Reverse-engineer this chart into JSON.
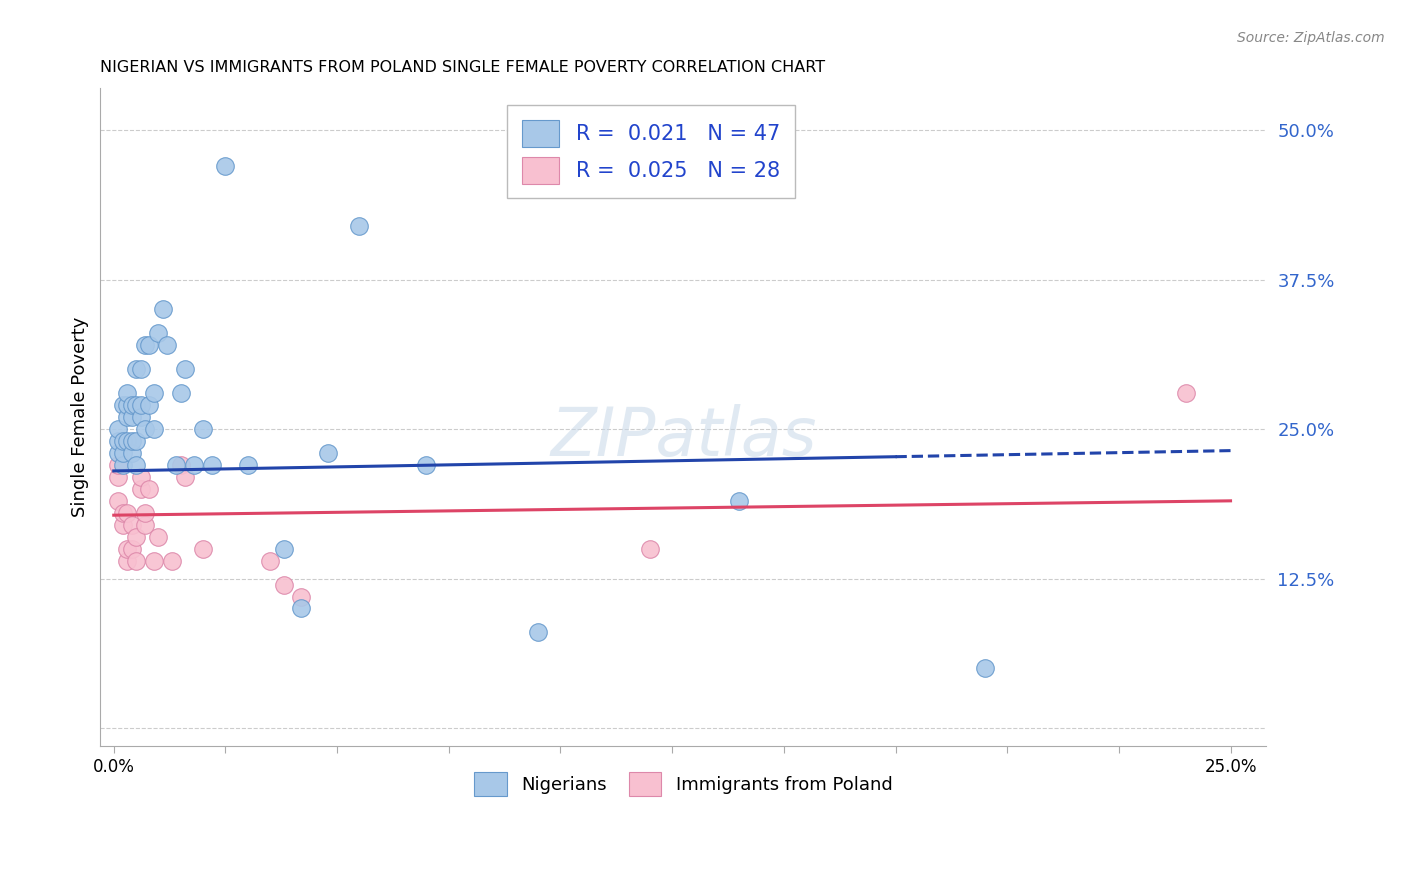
{
  "title": "NIGERIAN VS IMMIGRANTS FROM POLAND SINGLE FEMALE POVERTY CORRELATION CHART",
  "source": "Source: ZipAtlas.com",
  "ylabel": "Single Female Poverty",
  "y_ticks": [
    0.0,
    0.125,
    0.25,
    0.375,
    0.5
  ],
  "y_tick_labels": [
    "",
    "12.5%",
    "25.0%",
    "37.5%",
    "50.0%"
  ],
  "x_ticks": [
    0.0,
    0.025,
    0.05,
    0.075,
    0.1,
    0.125,
    0.15,
    0.175,
    0.2,
    0.225,
    0.25
  ],
  "legend_bottom": [
    "Nigerians",
    "Immigrants from Poland"
  ],
  "nigerian_color": "#a8c8e8",
  "nigerian_edge_color": "#6699cc",
  "poland_color": "#f8c0d0",
  "poland_edge_color": "#dd88aa",
  "nigerian_trend_color": "#2244aa",
  "poland_trend_color": "#dd4466",
  "background_color": "#ffffff",
  "grid_color": "#cccccc",
  "nigerian_R": "0.021",
  "nigerian_N": "47",
  "poland_R": "0.025",
  "poland_N": "28",
  "nigerian_points_x": [
    0.001,
    0.001,
    0.001,
    0.002,
    0.002,
    0.002,
    0.002,
    0.003,
    0.003,
    0.003,
    0.003,
    0.004,
    0.004,
    0.004,
    0.004,
    0.005,
    0.005,
    0.005,
    0.005,
    0.006,
    0.006,
    0.006,
    0.007,
    0.007,
    0.008,
    0.008,
    0.009,
    0.009,
    0.01,
    0.011,
    0.012,
    0.014,
    0.015,
    0.016,
    0.018,
    0.02,
    0.022,
    0.025,
    0.03,
    0.038,
    0.042,
    0.048,
    0.055,
    0.07,
    0.095,
    0.14,
    0.195
  ],
  "nigerian_points_y": [
    0.23,
    0.24,
    0.25,
    0.22,
    0.23,
    0.24,
    0.27,
    0.24,
    0.26,
    0.27,
    0.28,
    0.23,
    0.24,
    0.26,
    0.27,
    0.22,
    0.24,
    0.27,
    0.3,
    0.26,
    0.27,
    0.3,
    0.25,
    0.32,
    0.27,
    0.32,
    0.25,
    0.28,
    0.33,
    0.35,
    0.32,
    0.22,
    0.28,
    0.3,
    0.22,
    0.25,
    0.22,
    0.47,
    0.22,
    0.15,
    0.1,
    0.23,
    0.42,
    0.22,
    0.08,
    0.19,
    0.05
  ],
  "poland_points_x": [
    0.001,
    0.001,
    0.001,
    0.002,
    0.002,
    0.003,
    0.003,
    0.003,
    0.004,
    0.004,
    0.005,
    0.005,
    0.006,
    0.006,
    0.007,
    0.007,
    0.008,
    0.009,
    0.01,
    0.013,
    0.015,
    0.016,
    0.02,
    0.035,
    0.038,
    0.042,
    0.12,
    0.24
  ],
  "poland_points_y": [
    0.19,
    0.21,
    0.22,
    0.17,
    0.18,
    0.14,
    0.15,
    0.18,
    0.15,
    0.17,
    0.14,
    0.16,
    0.2,
    0.21,
    0.17,
    0.18,
    0.2,
    0.14,
    0.16,
    0.14,
    0.22,
    0.21,
    0.15,
    0.14,
    0.12,
    0.11,
    0.15,
    0.28
  ],
  "nig_trend_start_x": 0.0,
  "nig_trend_end_x": 0.25,
  "nig_trend_start_y": 0.215,
  "nig_trend_end_y": 0.232,
  "nig_trend_solid_end": 0.175,
  "pol_trend_start_x": 0.0,
  "pol_trend_end_x": 0.25,
  "pol_trend_start_y": 0.178,
  "pol_trend_end_y": 0.19
}
